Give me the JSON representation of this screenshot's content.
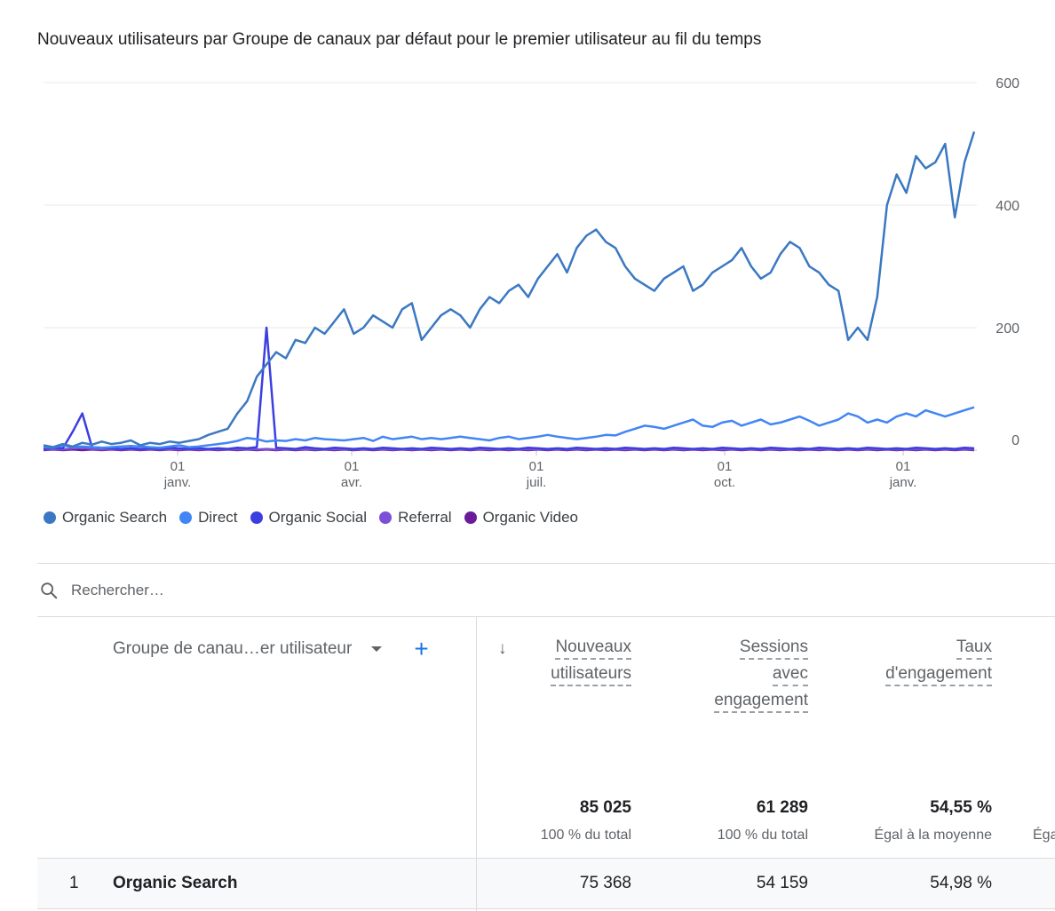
{
  "title": "Nouveaux utilisateurs par Groupe de canaux par défaut pour le premier utilisateur au fil du temps",
  "chart_data": {
    "type": "line",
    "ylim": [
      0,
      600
    ],
    "yticks": [
      "600",
      "400",
      "200",
      "0"
    ],
    "xticks": [
      {
        "day": "01",
        "month": "janv."
      },
      {
        "day": "01",
        "month": "avr."
      },
      {
        "day": "01",
        "month": "juil."
      },
      {
        "day": "01",
        "month": "oct."
      },
      {
        "day": "01",
        "month": "janv."
      }
    ],
    "grid": true,
    "legend_position": "bottom-left",
    "series": [
      {
        "name": "Organic Search",
        "color": "#3b78c2",
        "values": [
          8,
          5,
          10,
          6,
          12,
          9,
          14,
          10,
          12,
          16,
          8,
          12,
          10,
          14,
          12,
          15,
          18,
          25,
          30,
          35,
          60,
          80,
          120,
          140,
          160,
          150,
          180,
          175,
          200,
          190,
          210,
          230,
          190,
          200,
          220,
          210,
          200,
          230,
          240,
          180,
          200,
          220,
          230,
          220,
          200,
          230,
          250,
          240,
          260,
          270,
          250,
          280,
          300,
          320,
          290,
          330,
          350,
          360,
          340,
          330,
          300,
          280,
          270,
          260,
          280,
          290,
          300,
          260,
          270,
          290,
          300,
          310,
          330,
          300,
          280,
          290,
          320,
          340,
          330,
          300,
          290,
          270,
          260,
          180,
          200,
          180,
          250,
          400,
          450,
          420,
          480,
          460,
          470,
          500,
          380,
          470,
          520
        ]
      },
      {
        "name": "Direct",
        "color": "#4285f4",
        "values": [
          5,
          4,
          8,
          5,
          6,
          5,
          4,
          5,
          6,
          7,
          6,
          5,
          4,
          6,
          8,
          5,
          6,
          8,
          10,
          12,
          15,
          20,
          18,
          14,
          16,
          15,
          18,
          16,
          20,
          18,
          17,
          16,
          18,
          20,
          15,
          22,
          18,
          20,
          22,
          18,
          20,
          18,
          20,
          22,
          20,
          18,
          16,
          20,
          22,
          18,
          20,
          22,
          25,
          22,
          20,
          18,
          20,
          22,
          25,
          24,
          30,
          35,
          40,
          38,
          35,
          40,
          45,
          50,
          40,
          38,
          45,
          48,
          40,
          45,
          50,
          42,
          45,
          50,
          55,
          48,
          40,
          45,
          50,
          60,
          55,
          45,
          50,
          45,
          55,
          60,
          55,
          65,
          60,
          55,
          60,
          65,
          70
        ]
      },
      {
        "name": "Organic Social",
        "color": "#3b3fe0",
        "values": [
          2,
          4,
          3,
          30,
          60,
          5,
          4,
          3,
          2,
          3,
          2,
          3,
          2,
          4,
          3,
          2,
          3,
          2,
          3,
          2,
          4,
          3,
          5,
          200,
          4,
          3,
          2,
          5,
          3,
          2,
          4,
          3,
          2,
          3,
          2,
          4,
          3,
          2,
          3,
          2,
          4,
          3,
          2,
          3,
          2,
          4,
          3,
          2,
          3,
          2,
          4,
          3,
          2,
          3,
          2,
          4,
          3,
          2,
          3,
          2,
          4,
          3,
          2,
          3,
          2,
          4,
          3,
          2,
          3,
          2,
          4,
          3,
          2,
          3,
          2,
          4,
          3,
          2,
          3,
          2,
          4,
          3,
          2,
          3,
          2,
          4,
          3,
          2,
          3,
          2,
          4,
          3,
          2,
          3,
          2,
          4,
          3
        ]
      },
      {
        "name": "Referral",
        "color": "#7b4fd6",
        "values": [
          1,
          2,
          1,
          3,
          4,
          2,
          1,
          2,
          1,
          2,
          1,
          2,
          1,
          2,
          1,
          2,
          1,
          2,
          1,
          2,
          1,
          2,
          1,
          2,
          1,
          2,
          1,
          2,
          1,
          2,
          1,
          2,
          1,
          2,
          1,
          2,
          1,
          2,
          1,
          2,
          1,
          2,
          1,
          2,
          1,
          2,
          1,
          2,
          1,
          2,
          1,
          2,
          1,
          2,
          1,
          2,
          1,
          2,
          1,
          2,
          1,
          2,
          1,
          2,
          1,
          2,
          1,
          2,
          1,
          2,
          1,
          2,
          1,
          2,
          1,
          2,
          1,
          2,
          1,
          2,
          1,
          2,
          1,
          2,
          1,
          2,
          1,
          2,
          1,
          2,
          1,
          2,
          1,
          2,
          1,
          2,
          1
        ]
      },
      {
        "name": "Organic Video",
        "color": "#6a1b9a",
        "values": [
          0,
          1,
          0,
          1,
          0,
          1,
          0,
          1,
          0,
          1,
          0,
          1,
          0,
          1,
          0,
          1,
          0,
          1,
          0,
          1,
          0,
          1,
          0,
          1,
          0,
          1,
          0,
          1,
          0,
          1,
          0,
          1,
          0,
          1,
          0,
          1,
          0,
          1,
          0,
          1,
          0,
          1,
          0,
          1,
          0,
          1,
          0,
          1,
          0,
          1,
          0,
          1,
          0,
          1,
          0,
          1,
          0,
          1,
          0,
          1,
          0,
          1,
          0,
          1,
          0,
          1,
          0,
          1,
          0,
          1,
          0,
          1,
          0,
          1,
          0,
          1,
          0,
          1,
          0,
          1,
          0,
          1,
          0,
          1,
          0,
          1,
          0,
          1,
          0,
          1,
          0,
          1,
          0,
          1,
          0,
          1,
          0
        ]
      }
    ]
  },
  "search": {
    "placeholder": "Rechercher…"
  },
  "table": {
    "dimension_header": "Groupe de canau…er utilisateur",
    "sort_arrow": "↓",
    "add": "+",
    "headers": [
      {
        "lines": [
          "Nouveaux",
          "utilisateurs"
        ]
      },
      {
        "lines": [
          "Sessions",
          "avec",
          "engagement"
        ]
      },
      {
        "lines": [
          "Taux",
          "d'engagement"
        ]
      }
    ],
    "totals": [
      "85 025",
      "61 289",
      "54,55 %"
    ],
    "totals_sub": [
      "100 % du total",
      "100 % du total",
      "Égal à la moyenne",
      "Éga"
    ],
    "rows": [
      {
        "index": "1",
        "name": "Organic Search",
        "values": [
          "75 368",
          "54 159",
          "54,98 %"
        ]
      }
    ]
  }
}
